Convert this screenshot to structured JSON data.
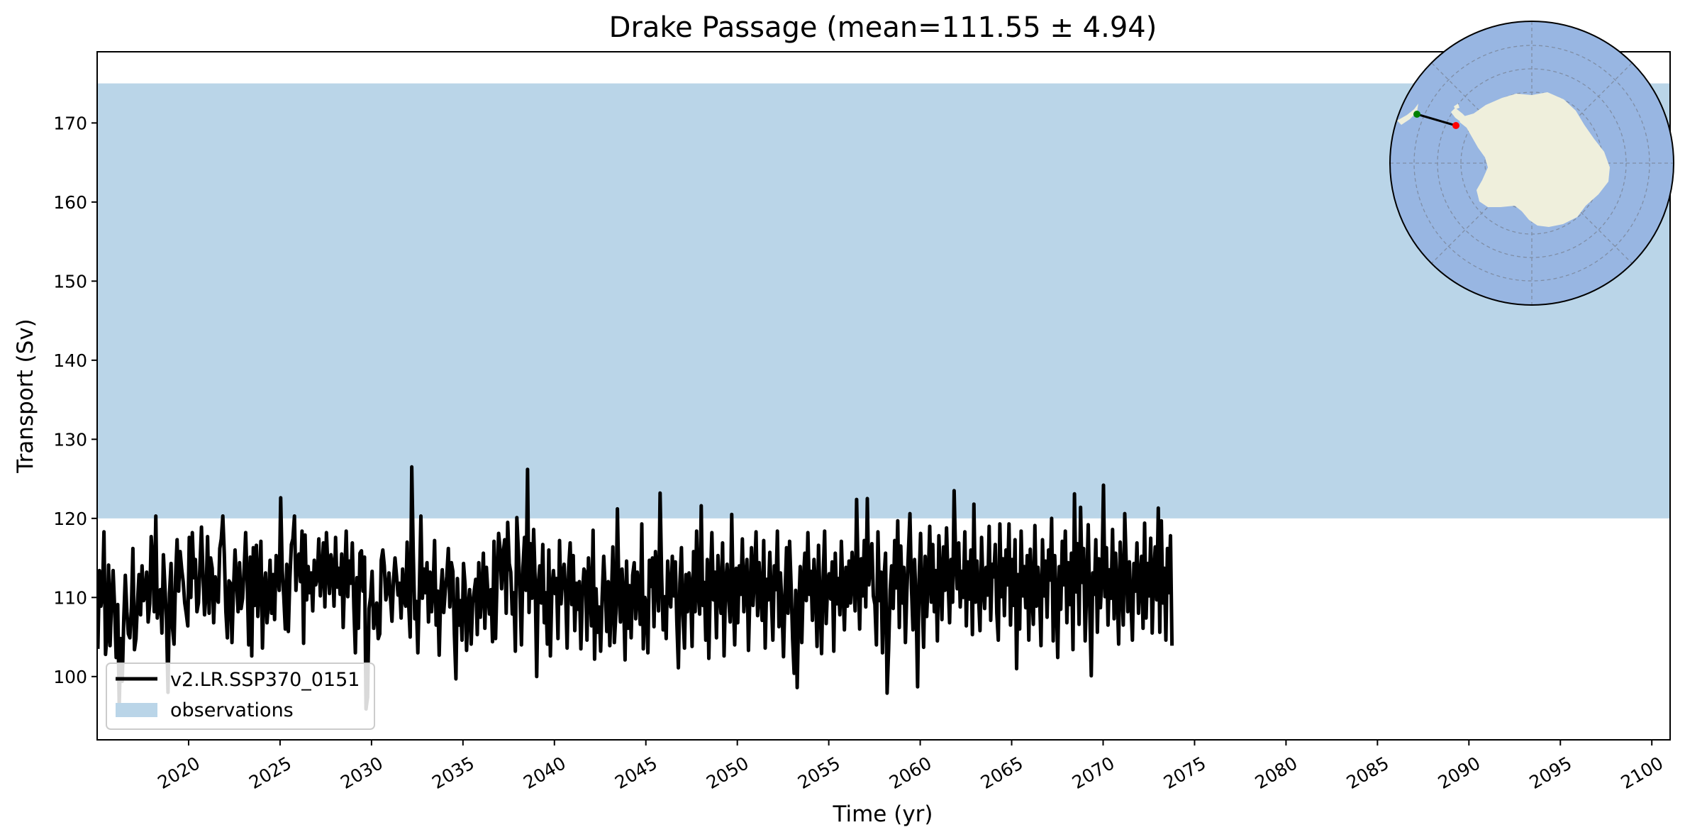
{
  "chart_data": {
    "type": "line",
    "title": "Drake Passage (mean=111.55 ± 4.94)",
    "xlabel": "Time (yr)",
    "ylabel": "Transport (Sv)",
    "xlim": [
      2015,
      2101
    ],
    "ylim": [
      92,
      179
    ],
    "x_ticks": [
      2020,
      2025,
      2030,
      2035,
      2040,
      2045,
      2050,
      2055,
      2060,
      2065,
      2070,
      2075,
      2080,
      2085,
      2090,
      2095,
      2100
    ],
    "y_ticks": [
      100,
      110,
      120,
      130,
      140,
      150,
      160,
      170
    ],
    "grid": false,
    "legend_position": "lower-left",
    "observations_band": {
      "label": "observations",
      "y_range": [
        120,
        175
      ],
      "color": "#bad5e8"
    },
    "series": [
      {
        "name": "v2.LR.SSP370_0151",
        "color": "#000000",
        "x_start": 2015.04,
        "x_step": 0.0833,
        "values": [
          103.5,
          113.4,
          108.9,
          110.4,
          118.3,
          102.8,
          105.3,
          114.1,
          103.9,
          109.6,
          113.4,
          108.6,
          102.4,
          109.1,
          96.2,
          104.8,
          99.4,
          107.5,
          112.8,
          108.2,
          105.4,
          104.9,
          108.7,
          116.2,
          103.4,
          104.8,
          109.4,
          112.9,
          107.8,
          114.0,
          109.6,
          110.2,
          113.2,
          106.9,
          109.2,
          117.7,
          114.5,
          108.2,
          120.3,
          107.4,
          109.2,
          111.0,
          105.5,
          115.4,
          111.3,
          107.3,
          98.0,
          110.5,
          114.3,
          106.1,
          104.1,
          112.6,
          117.3,
          110.8,
          115.8,
          113.6,
          112.0,
          109.3,
          108.0,
          106.4,
          117.6,
          110.0,
          118.2,
          112.5,
          114.8,
          108.2,
          109.3,
          114.1,
          118.9,
          112.7,
          107.8,
          110.5,
          117.7,
          108.0,
          115.0,
          113.7,
          106.8,
          112.6,
          110.1,
          109.4,
          116.2,
          117.4,
          120.3,
          115.5,
          108.2,
          104.9,
          112.1,
          111.8,
          104.3,
          110.9,
          116.0,
          112.1,
          108.2,
          114.4,
          108.6,
          109.9,
          113.7,
          118.2,
          111.9,
          104.0,
          115.1,
          102.6,
          116.3,
          109.0,
          116.6,
          107.6,
          112.4,
          117.1,
          103.6,
          111.2,
          113.1,
          106.8,
          109.6,
          114.7,
          108.0,
          112.9,
          107.2,
          115.3,
          113.5,
          110.9,
          122.6,
          113.4,
          110.2,
          106.0,
          114.2,
          105.7,
          112.3,
          116.7,
          117.4,
          120.3,
          110.9,
          114.8,
          115.5,
          112.0,
          118.4,
          104.2,
          117.9,
          109.7,
          113.9,
          110.6,
          113.1,
          108.3,
          114.7,
          111.6,
          112.5,
          117.4,
          110.2,
          113.0,
          116.9,
          108.8,
          118.2,
          113.7,
          110.5,
          115.4,
          114.1,
          108.9,
          117.6,
          111.3,
          113.7,
          110.4,
          115.5,
          106.2,
          112.9,
          118.4,
          110.1,
          114.6,
          111.8,
          116.9,
          108.7,
          103.0,
          112.5,
          106.1,
          115.6,
          115.9,
          110.8,
          115.1,
          95.9,
          97.4,
          108.6,
          110.1,
          113.3,
          106.1,
          107.7,
          109.3,
          104.8,
          105.4,
          114.7,
          116.0,
          114.0,
          109.7,
          110.8,
          113.1,
          110.1,
          107.0,
          112.1,
          115.0,
          112.8,
          110.3,
          111.8,
          107.4,
          113.6,
          109.7,
          108.9,
          117.0,
          109.1,
          105.0,
          126.5,
          115.8,
          107.3,
          109.5,
          103.0,
          110.8,
          120.3,
          109.9,
          113.6,
          110.6,
          114.4,
          106.9,
          113.2,
          108.2,
          111.1,
          117.2,
          106.5,
          110.8,
          102.7,
          110.4,
          113.5,
          108.1,
          110.9,
          112.7,
          116.2,
          108.8,
          114.4,
          113.3,
          105.4,
          99.7,
          112.4,
          106.5,
          109.6,
          104.6,
          114.3,
          111.6,
          103.3,
          108.8,
          111.0,
          104.1,
          109.3,
          110.8,
          112.3,
          105.3,
          114.4,
          107.5,
          110.6,
          115.6,
          106.1,
          113.8,
          110.5,
          107.9,
          111.0,
          104.4,
          117.1,
          104.8,
          112.3,
          118.1,
          116.1,
          111.1,
          115.5,
          117.3,
          108.0,
          119.5,
          114.3,
          113.2,
          107.9,
          110.6,
          103.2,
          120.1,
          115.8,
          110.8,
          104.0,
          113.8,
          117.6,
          110.9,
          126.2,
          108.1,
          116.8,
          109.9,
          118.6,
          112.2,
          100.0,
          111.5,
          114.0,
          109.3,
          116.7,
          106.8,
          110.6,
          104.1,
          116.0,
          102.6,
          111.1,
          113.4,
          110.5,
          112.4,
          104.8,
          117.2,
          109.2,
          112.6,
          114.2,
          110.6,
          103.6,
          113.8,
          116.9,
          109.1,
          115.3,
          105.8,
          111.8,
          108.5,
          112.0,
          103.5,
          110.3,
          113.6,
          113.1,
          104.6,
          115.0,
          111.0,
          106.4,
          118.5,
          102.2,
          111.1,
          105.6,
          108.8,
          103.2,
          110.0,
          115.2,
          111.1,
          105.7,
          112.0,
          103.9,
          109.6,
          116.4,
          104.3,
          108.0,
          121.2,
          110.5,
          106.9,
          113.6,
          110.0,
          102.1,
          114.6,
          106.1,
          111.5,
          104.9,
          112.8,
          114.4,
          107.3,
          113.2,
          110.6,
          106.6,
          119.3,
          103.5,
          110.0,
          109.0,
          103.0,
          114.7,
          111.4,
          115.0,
          106.3,
          115.8,
          112.1,
          108.3,
          123.2,
          113.0,
          105.9,
          110.1,
          104.8,
          114.6,
          110.3,
          108.8,
          115.2,
          110.2,
          114.5,
          106.9,
          101.1,
          111.8,
          116.3,
          107.7,
          103.6,
          112.9,
          108.2,
          113.1,
          111.4,
          103.8,
          115.8,
          108.2,
          118.4,
          110.7,
          107.9,
          121.6,
          109.0,
          111.9,
          104.6,
          114.8,
          102.3,
          112.1,
          118.2,
          109.7,
          113.2,
          104.9,
          115.3,
          110.7,
          108.0,
          116.9,
          102.6,
          111.7,
          114.2,
          109.8,
          106.9,
          120.5,
          110.1,
          104.0,
          113.7,
          106.8,
          114.0,
          110.4,
          117.4,
          108.2,
          112.1,
          114.8,
          103.3,
          110.6,
          116.3,
          109.0,
          112.7,
          118.3,
          107.7,
          114.4,
          110.2,
          107.1,
          117.2,
          103.6,
          112.3,
          109.7,
          115.7,
          110.1,
          104.6,
          114.0,
          111.0,
          118.4,
          106.3,
          113.1,
          109.0,
          102.5,
          110.2,
          116.3,
          108.0,
          117.1,
          111.6,
          104.7,
          100.4,
          110.9,
          98.6,
          108.6,
          113.9,
          104.3,
          112.0,
          115.6,
          109.6,
          118.2,
          110.4,
          113.3,
          107.1,
          114.8,
          111.4,
          103.8,
          116.6,
          109.6,
          102.9,
          112.5,
          118.4,
          106.7,
          111.8,
          113.0,
          109.8,
          114.5,
          103.2,
          115.6,
          109.2,
          112.4,
          107.8,
          117.1,
          111.0,
          105.9,
          113.8,
          108.9,
          114.6,
          109.3,
          115.7,
          112.1,
          108.3,
          122.4,
          112.8,
          106.0,
          114.9,
          110.2,
          117.2,
          108.8,
          122.5,
          111.6,
          114.1,
          116.8,
          110.2,
          109.1,
          104.0,
          118.3,
          109.6,
          113.2,
          103.0,
          112.6,
          115.6,
          97.9,
          103.4,
          110.9,
          114.0,
          108.6,
          117.2,
          111.2,
          119.7,
          106.2,
          116.5,
          109.3,
          113.8,
          104.3,
          110.9,
          115.9,
          120.6,
          111.1,
          105.9,
          114.8,
          109.5,
          98.7,
          112.2,
          118.1,
          110.0,
          103.7,
          115.2,
          107.6,
          112.4,
          119.0,
          109.4,
          116.7,
          108.2,
          113.4,
          104.5,
          117.8,
          112.5,
          107.2,
          116.4,
          110.9,
          118.8,
          112.3,
          106.8,
          114.8,
          109.4,
          123.5,
          115.0,
          111.1,
          116.9,
          108.8,
          113.3,
          110.0,
          118.3,
          106.4,
          114.5,
          109.8,
          116.0,
          105.3,
          121.8,
          109.4,
          114.6,
          110.1,
          105.8,
          117.6,
          111.2,
          108.6,
          113.8,
          110.3,
          119.0,
          107.1,
          114.2,
          112.6,
          116.7,
          108.0,
          104.6,
          119.3,
          110.1,
          114.9,
          107.7,
          116.0,
          111.6,
          119.3,
          106.5,
          114.8,
          109.0,
          117.3,
          101.0,
          112.9,
          106.0,
          118.4,
          110.2,
          113.9,
          108.7,
          115.3,
          104.6,
          116.1,
          110.9,
          106.6,
          119.1,
          108.9,
          113.8,
          111.0,
          103.9,
          117.3,
          110.2,
          114.6,
          107.5,
          116.0,
          112.2,
          120.0,
          104.5,
          115.3,
          110.0,
          102.4,
          113.9,
          108.5,
          117.1,
          111.6,
          118.4,
          106.8,
          114.4,
          109.1,
          115.6,
          103.4,
          123.1,
          110.7,
          116.8,
          106.6,
          121.4,
          111.9,
          116.2,
          104.5,
          111.3,
          119.2,
          108.8,
          100.1,
          113.1,
          110.4,
          117.3,
          105.6,
          114.9,
          108.7,
          112.8,
          124.2,
          110.1,
          116.3,
          106.5,
          113.5,
          109.9,
          118.6,
          107.3,
          115.6,
          110.6,
          104.1,
          117.0,
          111.8,
          106.5,
          120.6,
          113.9,
          108.2,
          114.5,
          109.5,
          104.6,
          114.3,
          110.8,
          116.9,
          108.0,
          112.6,
          115.2,
          106.1,
          119.4,
          107.4,
          114.3,
          110.2,
          117.5,
          105.5,
          112.9,
          116.4,
          109.7,
          121.3,
          105.6,
          119.7,
          109.3,
          113.7,
          104.6,
          116.2,
          110.6,
          117.8,
          103.9
        ]
      }
    ],
    "inset_map": {
      "type": "south-polar-stereographic",
      "ocean_color": "#98b6e2",
      "land_color": "#efefdc",
      "section_start_color": "#008000",
      "section_end_color": "#ff0000"
    }
  }
}
